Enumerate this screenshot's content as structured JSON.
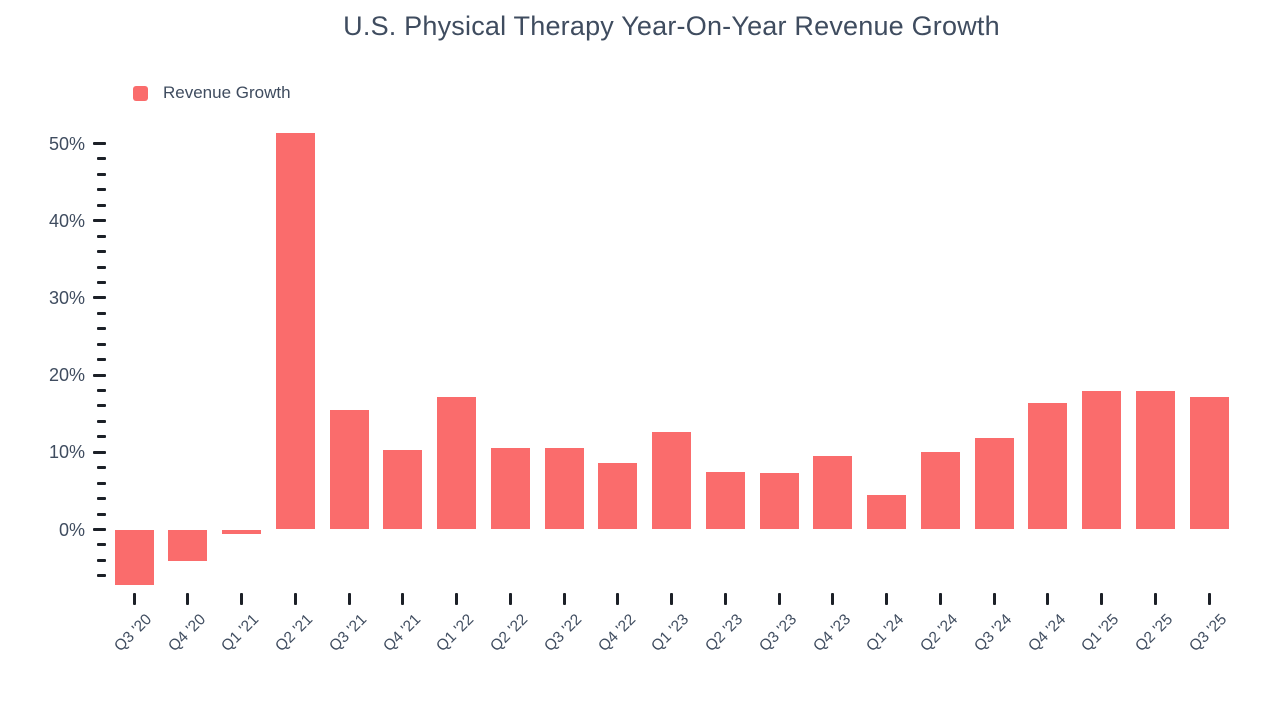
{
  "title": "U.S. Physical Therapy Year-On-Year Revenue Growth",
  "legend": {
    "label": "Revenue Growth"
  },
  "colors": {
    "bar": "#fa6c6c",
    "text": "#3f4c5f",
    "tick": "#1c2027",
    "background": "#ffffff"
  },
  "y_axis": {
    "tick_labels": [
      "0%",
      "10%",
      "20%",
      "30%",
      "40%",
      "50%"
    ],
    "major_step": 10,
    "minor_step": 2,
    "minor_min": -6,
    "minor_max": 50
  },
  "chart_data": {
    "type": "bar",
    "title": "U.S. Physical Therapy Year-On-Year Revenue Growth",
    "series_name": "Revenue Growth",
    "unit": "%",
    "categories": [
      "Q3 '20",
      "Q4 '20",
      "Q1 '21",
      "Q2 '21",
      "Q3 '21",
      "Q4 '21",
      "Q1 '22",
      "Q2 '22",
      "Q3 '22",
      "Q4 '22",
      "Q1 '23",
      "Q2 '23",
      "Q3 '23",
      "Q4 '23",
      "Q1 '24",
      "Q2 '24",
      "Q3 '24",
      "Q4 '24",
      "Q1 '25",
      "Q2 '25",
      "Q3 '25"
    ],
    "values": [
      -7.2,
      -4.1,
      -0.6,
      51.4,
      15.5,
      10.3,
      17.1,
      10.6,
      10.6,
      8.6,
      12.6,
      7.4,
      7.3,
      9.5,
      4.5,
      10.1,
      11.8,
      16.4,
      18.0,
      18.0,
      17.2
    ],
    "xlabel": "",
    "ylabel": "",
    "ylim": [
      -8,
      52
    ],
    "yticks": [
      0,
      10,
      20,
      30,
      40,
      50
    ],
    "grid": false,
    "legend_position": "top-left"
  }
}
